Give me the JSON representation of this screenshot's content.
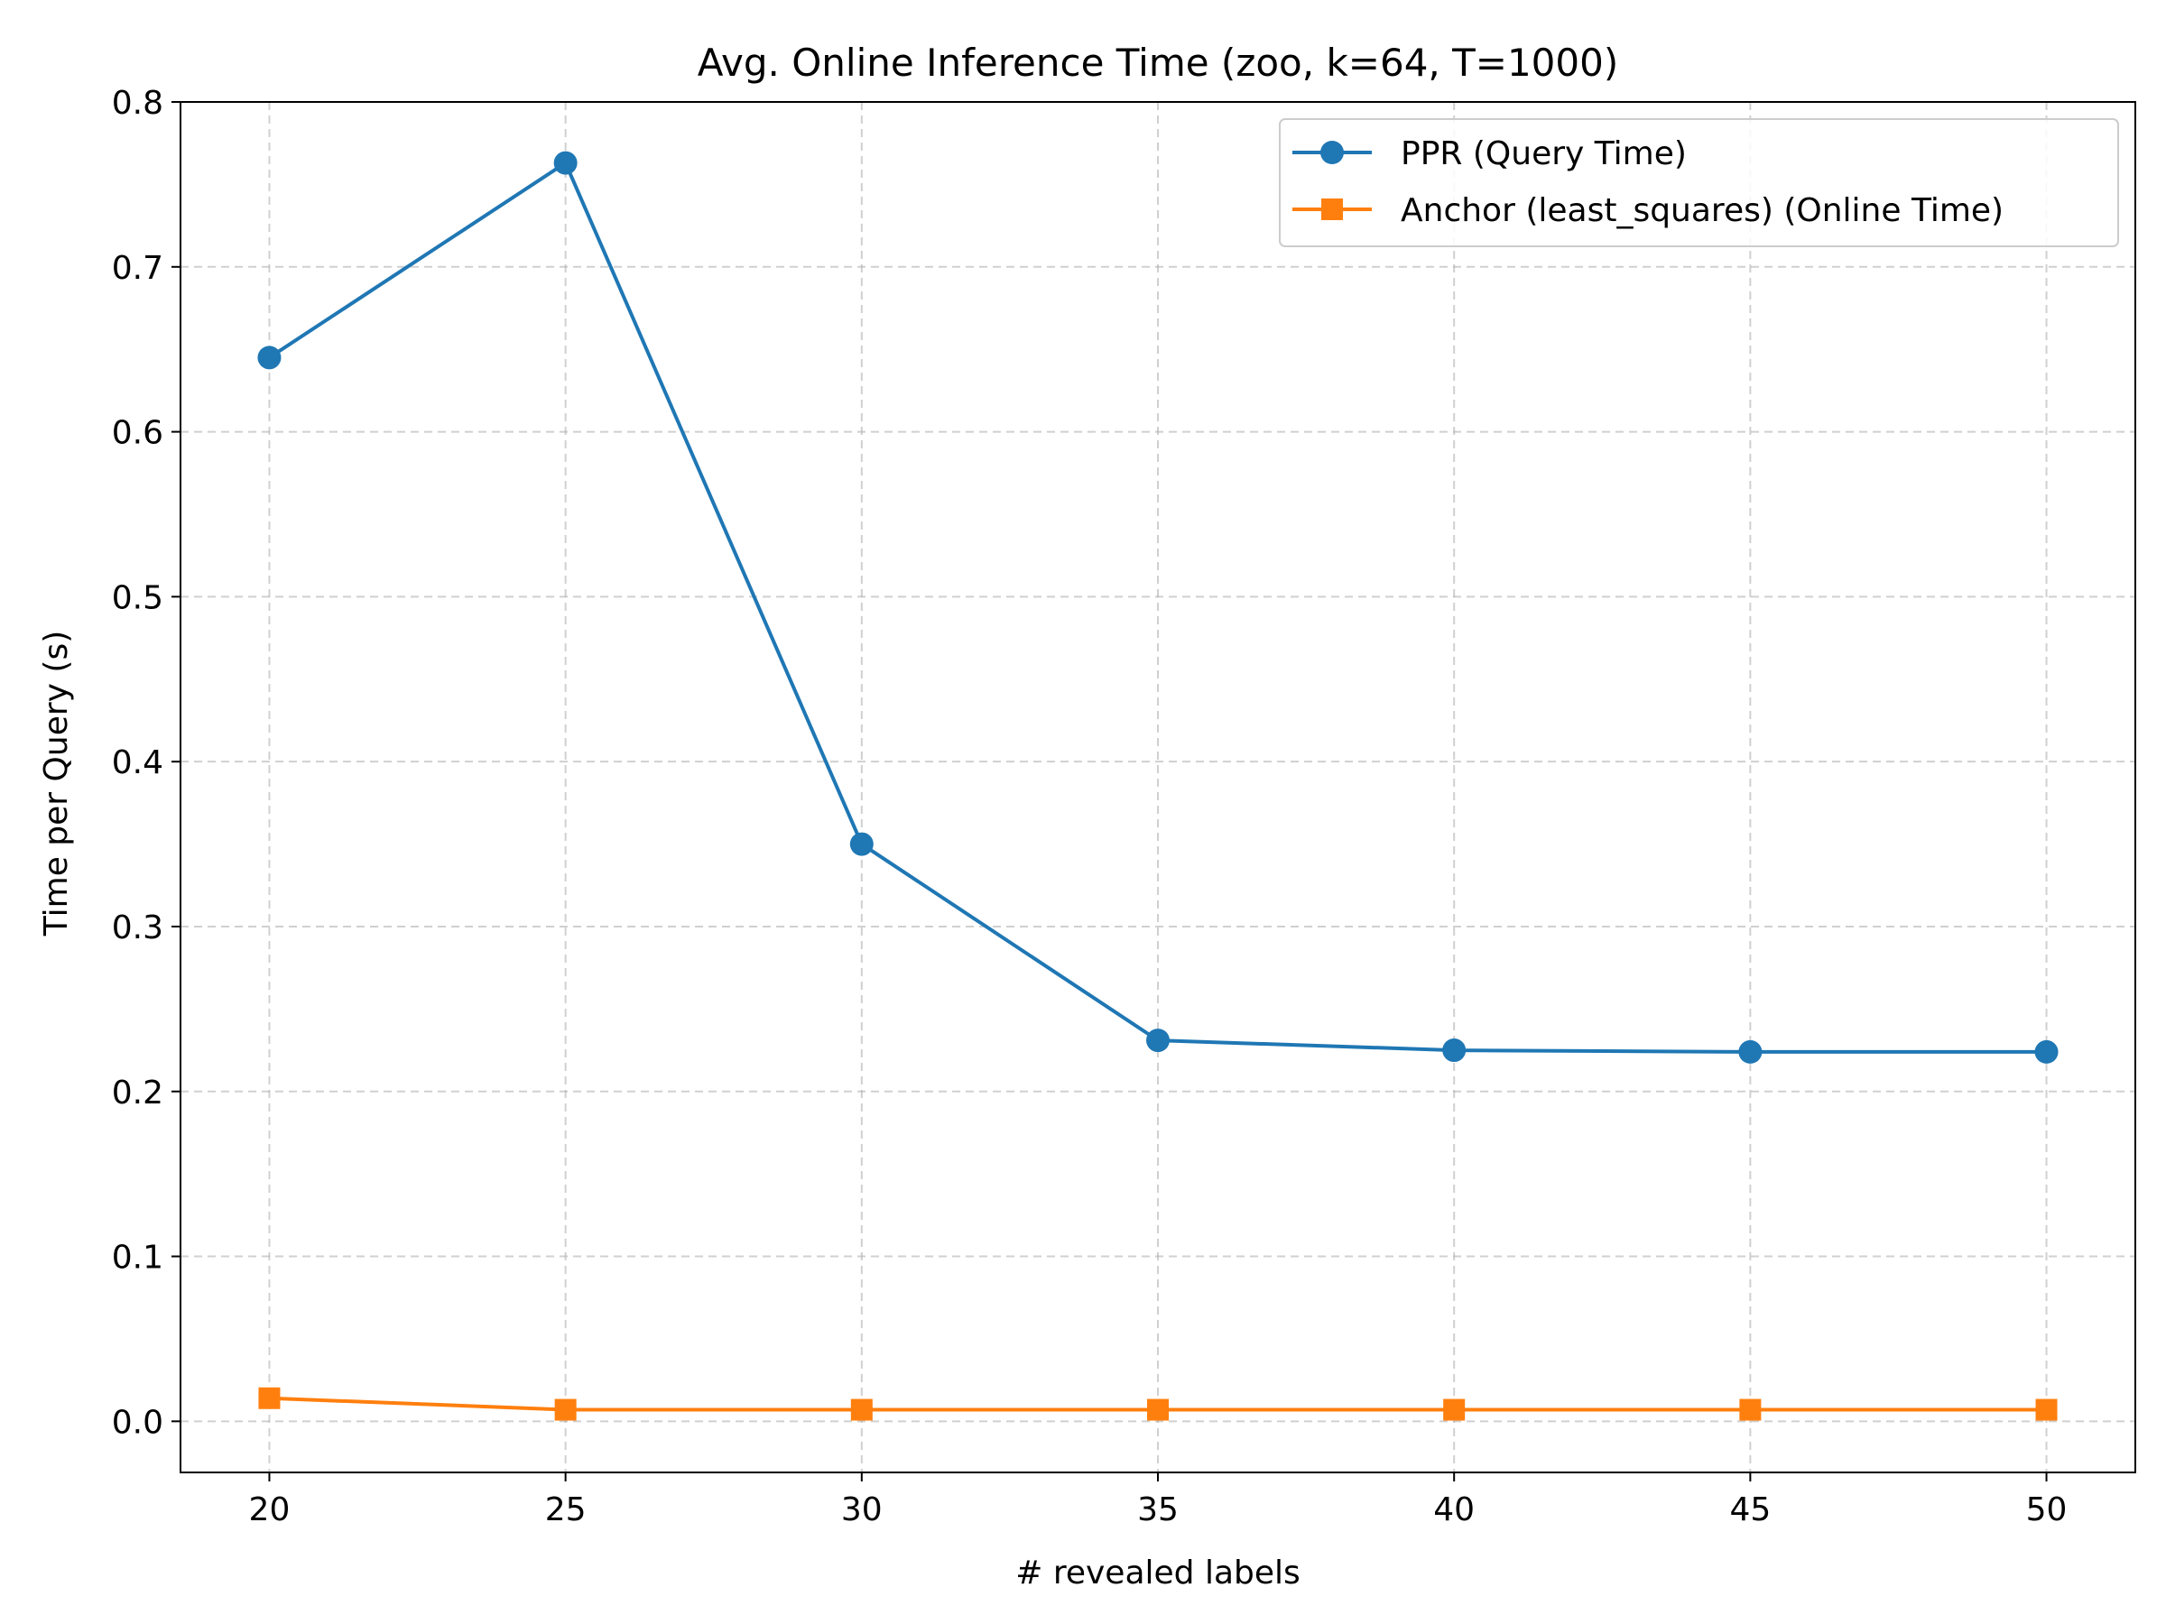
{
  "chart_data": {
    "type": "line",
    "title": "Avg. Online Inference Time (zoo, k=64, T=1000)",
    "xlabel": "# revealed labels",
    "ylabel": "Time per Query (s)",
    "x": [
      20,
      25,
      30,
      35,
      40,
      45,
      50
    ],
    "xticks": [
      20,
      25,
      30,
      35,
      40,
      45,
      50
    ],
    "xtick_labels": [
      "20",
      "25",
      "30",
      "35",
      "40",
      "45",
      "50"
    ],
    "yticks": [
      0.0,
      0.1,
      0.2,
      0.3,
      0.4,
      0.5,
      0.6,
      0.7,
      0.8
    ],
    "ytick_labels": [
      "0.0",
      "0.1",
      "0.2",
      "0.3",
      "0.4",
      "0.5",
      "0.6",
      "0.7",
      "0.8"
    ],
    "xlim": [
      18.5,
      51.5
    ],
    "ylim": [
      -0.031,
      0.8
    ],
    "grid": true,
    "legend_position": "top-right",
    "series": [
      {
        "name": "PPR (Query Time)",
        "color": "#1f77b4",
        "marker": "circle",
        "values": [
          0.645,
          0.763,
          0.35,
          0.231,
          0.225,
          0.224,
          0.224
        ]
      },
      {
        "name": "Anchor (least_squares) (Online Time)",
        "color": "#ff7f0e",
        "marker": "square",
        "values": [
          0.014,
          0.007,
          0.007,
          0.007,
          0.007,
          0.007,
          0.007
        ]
      }
    ]
  }
}
